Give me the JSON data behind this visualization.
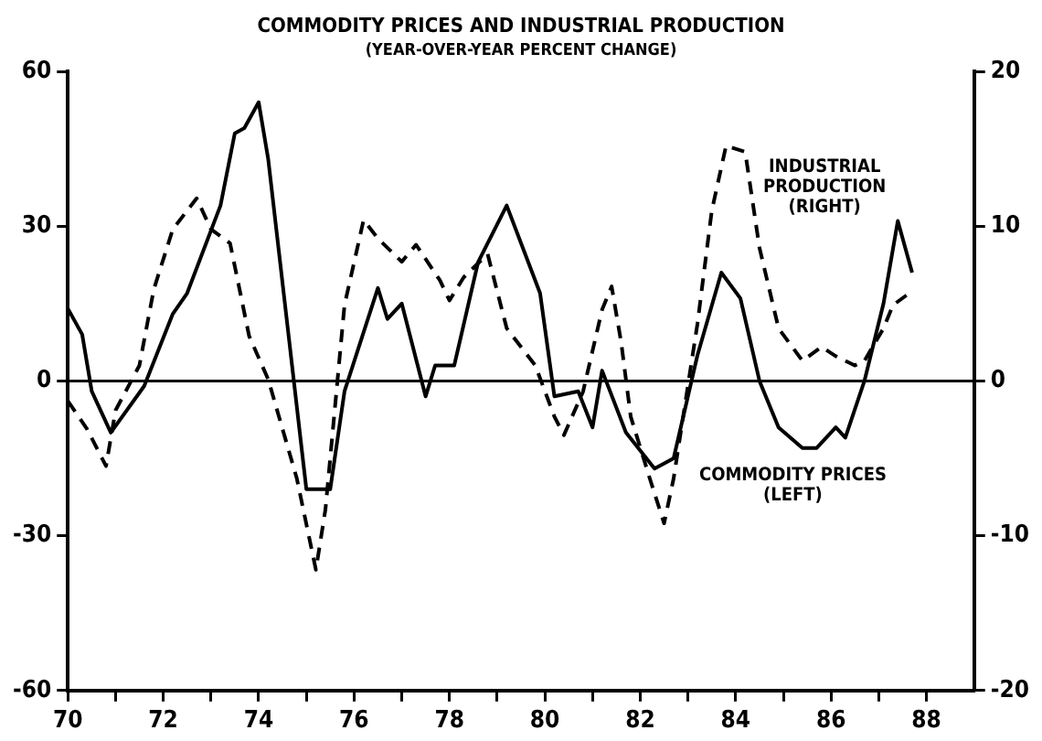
{
  "chart_data": {
    "type": "line",
    "title": "COMMODITY PRICES AND INDUSTRIAL PRODUCTION",
    "subtitle": "(YEAR-OVER-YEAR PERCENT CHANGE)",
    "xlim": [
      70,
      89
    ],
    "xticks": [
      70,
      {
        "value": 71,
        "label": null
      },
      72,
      {
        "value": 73,
        "label": null
      },
      74,
      {
        "value": 75,
        "label": null
      },
      76,
      {
        "value": 77,
        "label": null
      },
      78,
      {
        "value": 79,
        "label": null
      },
      80,
      {
        "value": 81,
        "label": null
      },
      82,
      {
        "value": 83,
        "label": null
      },
      84,
      {
        "value": 85,
        "label": null
      },
      86,
      {
        "value": 87,
        "label": null
      },
      88
    ],
    "ylim": [
      -60,
      60
    ],
    "yticks": [
      -60,
      -30,
      0,
      30,
      60
    ],
    "y2lim": [
      -20,
      20
    ],
    "y2ticks": [
      -20,
      -10,
      0,
      10,
      20
    ],
    "grid": false,
    "legend": false,
    "marker": "none",
    "ref_lines": [
      {
        "axis": "y",
        "value": 0,
        "color": "#000000"
      }
    ],
    "series": [
      {
        "name": "COMMODITY PRICES (LEFT)",
        "color": "#000000",
        "line_style": "solid",
        "x": [
          70.0,
          70.3,
          70.5,
          70.9,
          71.6,
          72.2,
          72.5,
          73.2,
          73.5,
          73.7,
          74.0,
          74.2,
          74.6,
          75.0,
          75.5,
          75.8,
          76.5,
          76.7,
          77.0,
          77.5,
          77.7,
          78.1,
          78.6,
          79.2,
          79.9,
          80.2,
          80.7,
          81.0,
          81.2,
          81.7,
          82.3,
          82.7,
          83.2,
          83.7,
          84.1,
          84.5,
          84.9,
          85.4,
          85.7,
          86.1,
          86.3,
          86.7,
          87.1,
          87.4,
          87.7
        ],
        "values": [
          14,
          9,
          -2,
          -10,
          -1,
          13,
          17,
          34,
          48,
          49,
          54,
          43,
          11,
          -21,
          -21,
          -2,
          18,
          12,
          15,
          -3,
          3,
          3,
          23,
          34,
          17,
          -3,
          -2,
          -9,
          2,
          -10,
          -17,
          -15,
          5,
          21,
          16,
          0,
          -9,
          -13,
          -13,
          -9,
          -11,
          0,
          15,
          31,
          21
        ]
      },
      {
        "name": "INDUSTRIAL PRODUCTION (RIGHT)",
        "color": "#000000",
        "line_style": "dashed",
        "axis": "y2",
        "x": [
          70.0,
          70.4,
          70.8,
          71.0,
          71.5,
          71.8,
          72.2,
          72.7,
          73.0,
          73.4,
          73.8,
          74.2,
          74.8,
          75.2,
          75.4,
          75.8,
          76.2,
          76.5,
          77.0,
          77.3,
          77.8,
          78.0,
          78.3,
          78.8,
          79.2,
          79.8,
          80.2,
          80.4,
          80.8,
          81.2,
          81.4,
          81.6,
          81.8,
          82.2,
          82.5,
          82.7,
          83.2,
          83.5,
          83.8,
          84.2,
          84.5,
          84.9,
          85.4,
          85.8,
          86.1,
          86.5,
          86.7,
          87.1,
          87.3,
          87.7
        ],
        "values": [
          -1.3,
          -3.1,
          -5.5,
          -1.9,
          1,
          5.9,
          9.8,
          11.8,
          9.8,
          8.9,
          2.9,
          0.1,
          -6.3,
          -12.2,
          -8.3,
          4.9,
          10.4,
          9.2,
          7.7,
          8.8,
          6.5,
          5.2,
          6.7,
          8.2,
          3.4,
          1,
          -2.3,
          -3.5,
          -0.7,
          4.6,
          6.1,
          2.5,
          -2.3,
          -6.3,
          -9.2,
          -6.3,
          3.7,
          11,
          15.2,
          14.8,
          8.6,
          3.4,
          1.3,
          2.2,
          1.6,
          1,
          1.3,
          3.4,
          4.9,
          5.8
        ]
      }
    ]
  }
}
